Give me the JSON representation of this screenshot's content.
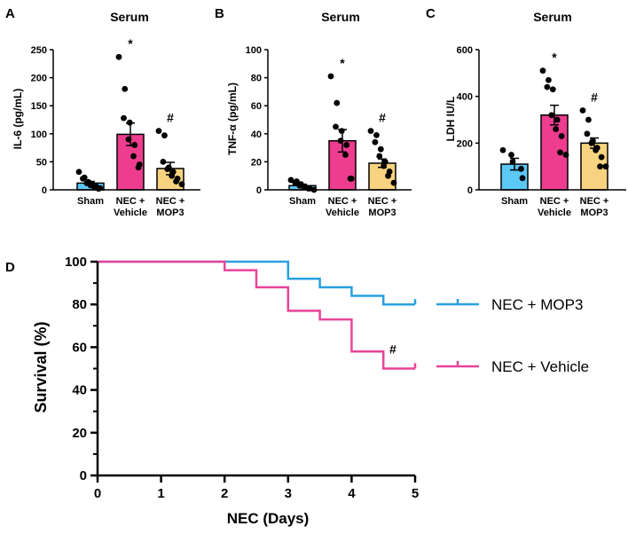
{
  "colors": {
    "sham": "#5bc8f5",
    "vehicle": "#ee3d8f",
    "mop3": "#f8d37f",
    "mop3_line": "#2a9fe0",
    "vehicle_line": "#e8449a",
    "axis": "#000000"
  },
  "chart_data": [
    {
      "panel": "A",
      "type": "bar",
      "title": "Serum",
      "ylabel": "IL-6 (pg/mL)",
      "ylim": [
        0,
        250
      ],
      "yticks": [
        "0",
        "50",
        "100",
        "150",
        "200",
        "250"
      ],
      "categories": [
        "Sham",
        "NEC +\nVehicle",
        "NEC +\nMOP3"
      ],
      "category_lines": [
        [
          "Sham"
        ],
        [
          "NEC +",
          "Vehicle"
        ],
        [
          "NEC +",
          "MOP3"
        ]
      ],
      "values": [
        12,
        99,
        38
      ],
      "errors": [
        3,
        20,
        11
      ],
      "points": [
        [
          32,
          22,
          20,
          14,
          12,
          10,
          8,
          6,
          5,
          3,
          2
        ],
        [
          237,
          180,
          128,
          120,
          90,
          80,
          60,
          45,
          40
        ],
        [
          105,
          97,
          50,
          40,
          37,
          32,
          25,
          20,
          15,
          10
        ]
      ],
      "markers": [
        "",
        "*",
        "#"
      ]
    },
    {
      "panel": "B",
      "type": "bar",
      "title": "Serum",
      "ylabel": "TNF-α (pg/mL)",
      "ylim": [
        0,
        100
      ],
      "yticks": [
        "0",
        "20",
        "40",
        "60",
        "80",
        "100"
      ],
      "categories": [
        "Sham",
        "NEC +\nVehicle",
        "NEC +\nMOP3"
      ],
      "category_lines": [
        [
          "Sham"
        ],
        [
          "NEC +",
          "Vehicle"
        ],
        [
          "NEC +",
          "MOP3"
        ]
      ],
      "values": [
        3,
        35,
        19
      ],
      "errors": [
        1,
        8,
        3
      ],
      "points": [
        [
          7,
          6,
          5,
          4,
          3,
          2,
          2,
          1,
          1,
          0
        ],
        [
          81,
          62,
          45,
          42,
          35,
          32,
          25,
          8,
          8
        ],
        [
          42,
          39,
          34,
          29,
          24,
          20,
          17,
          13,
          10,
          5
        ]
      ],
      "markers": [
        "",
        "*",
        "#"
      ]
    },
    {
      "panel": "C",
      "type": "bar",
      "title": "Serum",
      "ylabel": "LDH IU/L",
      "ylim": [
        0,
        600
      ],
      "yticks": [
        "0",
        "200",
        "400",
        "600"
      ],
      "categories": [
        "Sham",
        "NEC +\nVehicle",
        "NEC +\nMOP3"
      ],
      "category_lines": [
        [
          "Sham"
        ],
        [
          "NEC +",
          "Vehicle"
        ],
        [
          "NEC +",
          "MOP3"
        ]
      ],
      "values": [
        110,
        320,
        200
      ],
      "errors": [
        25,
        42,
        22
      ],
      "points": [
        [
          170,
          150,
          120,
          90,
          50
        ],
        [
          510,
          470,
          440,
          430,
          320,
          300,
          260,
          230,
          160,
          150
        ],
        [
          340,
          300,
          240,
          210,
          200,
          180,
          170,
          140,
          100,
          100
        ]
      ],
      "markers": [
        "",
        "*",
        "#"
      ]
    },
    {
      "panel": "D",
      "type": "line",
      "style": "step",
      "xlabel": "NEC (Days)",
      "ylabel": "Survival (%)",
      "xlim": [
        0,
        5
      ],
      "ylim": [
        0,
        100
      ],
      "xticks": [
        "0",
        "1",
        "2",
        "3",
        "4",
        "5"
      ],
      "yticks": [
        "0",
        "20",
        "40",
        "60",
        "80",
        "100"
      ],
      "series": [
        {
          "name": "NEC + MOP3",
          "x": [
            0,
            3,
            3.5,
            4,
            4.5,
            5
          ],
          "y": [
            100,
            92,
            88,
            84,
            80,
            80
          ]
        },
        {
          "name": "NEC + Vehicle",
          "x": [
            0,
            2,
            2.5,
            3,
            3.5,
            4,
            4.5,
            5
          ],
          "y": [
            100,
            96,
            88,
            77,
            73,
            58,
            50,
            50
          ]
        }
      ],
      "annotation": "#"
    }
  ]
}
